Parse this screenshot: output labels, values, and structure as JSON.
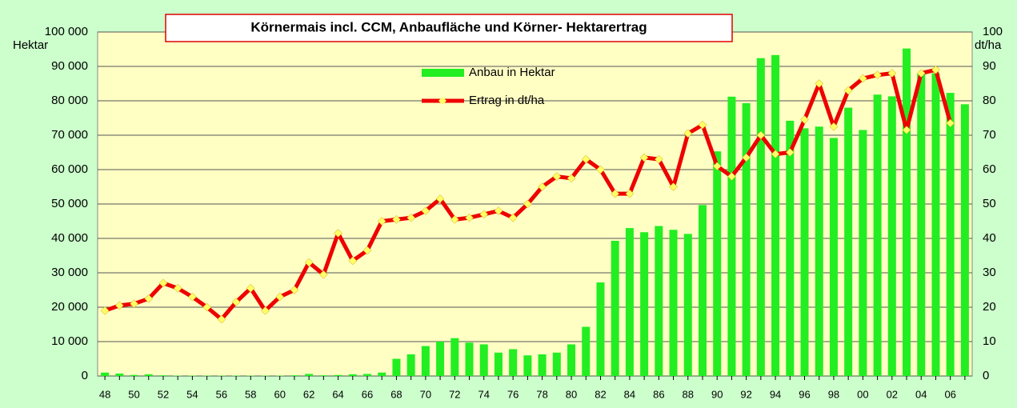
{
  "chart_data": {
    "type": "bar_line",
    "title": "Körnermais incl. CCM, Anbaufläche und Körner- Hektarertrag",
    "y_label": "Hektar",
    "y2_label": "dt/ha",
    "categories": [
      "48",
      null,
      "50",
      null,
      "52",
      null,
      "54",
      null,
      "56",
      null,
      "58",
      null,
      "60",
      null,
      "62",
      null,
      "64",
      null,
      "66",
      null,
      "68",
      null,
      "70",
      null,
      "72",
      null,
      "74",
      null,
      "76",
      null,
      "78",
      null,
      "80",
      null,
      "82",
      null,
      "84",
      null,
      "86",
      null,
      "88",
      null,
      "90",
      null,
      "92",
      null,
      "94",
      null,
      "96",
      null,
      "98",
      null,
      "00",
      null,
      "02",
      null,
      "04",
      null,
      "06",
      null
    ],
    "series": [
      {
        "name": "Anbau in Hektar",
        "color": "#22ee22",
        "kind": "bar",
        "values": [
          1000,
          700,
          300,
          500,
          200,
          100,
          100,
          100,
          100,
          100,
          100,
          100,
          100,
          200,
          600,
          200,
          300,
          500,
          600,
          1000,
          5000,
          6300,
          8700,
          10000,
          11000,
          9700,
          9200,
          6800,
          7800,
          6000,
          6300,
          6800,
          9200,
          14300,
          27200,
          39300,
          43000,
          41800,
          43600,
          42500,
          41300,
          49700,
          65300,
          81200,
          79300,
          92400,
          93300,
          74200,
          72000,
          72500,
          69200,
          78000,
          71500,
          81800,
          81300,
          95200,
          88000,
          88000,
          82300,
          79000
        ]
      },
      {
        "name": "Ertrag in dt/ha",
        "color": "#ee0000",
        "marker_color": "#ffff66",
        "kind": "line",
        "axis": "y2",
        "values": [
          19,
          20.5,
          21,
          22.5,
          27,
          25.5,
          23,
          20,
          16.5,
          21.5,
          25.5,
          19,
          23,
          25,
          33,
          29.5,
          41.5,
          33.5,
          36.5,
          45,
          45.5,
          46,
          48,
          51.5,
          45.5,
          46,
          47,
          48,
          46,
          50,
          55,
          58,
          57.5,
          63,
          60,
          53,
          53,
          63.5,
          63,
          55,
          70.5,
          73,
          61,
          58,
          63.5,
          70,
          64.5,
          65,
          74.5,
          85,
          72.5,
          83,
          86.5,
          87.5,
          88,
          71.5,
          88,
          89,
          73.5,
          null
        ]
      }
    ],
    "ylim": [
      0,
      100000
    ],
    "yticks": [
      0,
      {
        "value": 10000,
        "label": "10 000"
      },
      {
        "value": 20000,
        "label": "20 000"
      },
      {
        "value": 30000,
        "label": "30 000"
      },
      {
        "value": 40000,
        "label": "40 000"
      },
      {
        "value": 50000,
        "label": "50 000"
      },
      {
        "value": 60000,
        "label": "60 000"
      },
      {
        "value": 70000,
        "label": "70 000"
      },
      {
        "value": 80000,
        "label": "80 000"
      },
      {
        "value": 90000,
        "label": "90 000"
      },
      {
        "value": 100000,
        "label": "100 000"
      }
    ],
    "y2lim": [
      0,
      100
    ],
    "y2ticks": [
      0,
      10,
      20,
      30,
      40,
      50,
      60,
      70,
      80,
      90,
      100
    ],
    "grid": true
  }
}
